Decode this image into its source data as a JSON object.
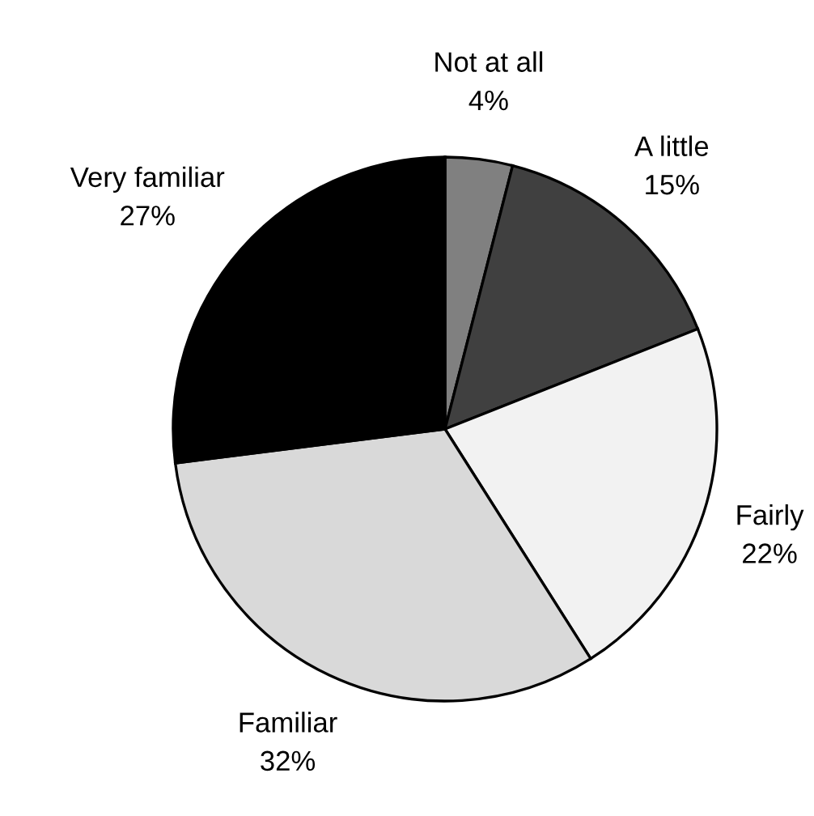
{
  "chart_data": {
    "type": "pie",
    "categories": [
      "Not at all",
      "A little",
      "Fairly",
      "Familiar",
      "Very familiar"
    ],
    "values": [
      4,
      15,
      22,
      32,
      27
    ],
    "value_labels": [
      "4%",
      "15%",
      "22%",
      "32%",
      "27%"
    ],
    "colors": [
      "#808080",
      "#404040",
      "#f2f2f2",
      "#d9d9d9",
      "#000000"
    ],
    "legend": false
  }
}
